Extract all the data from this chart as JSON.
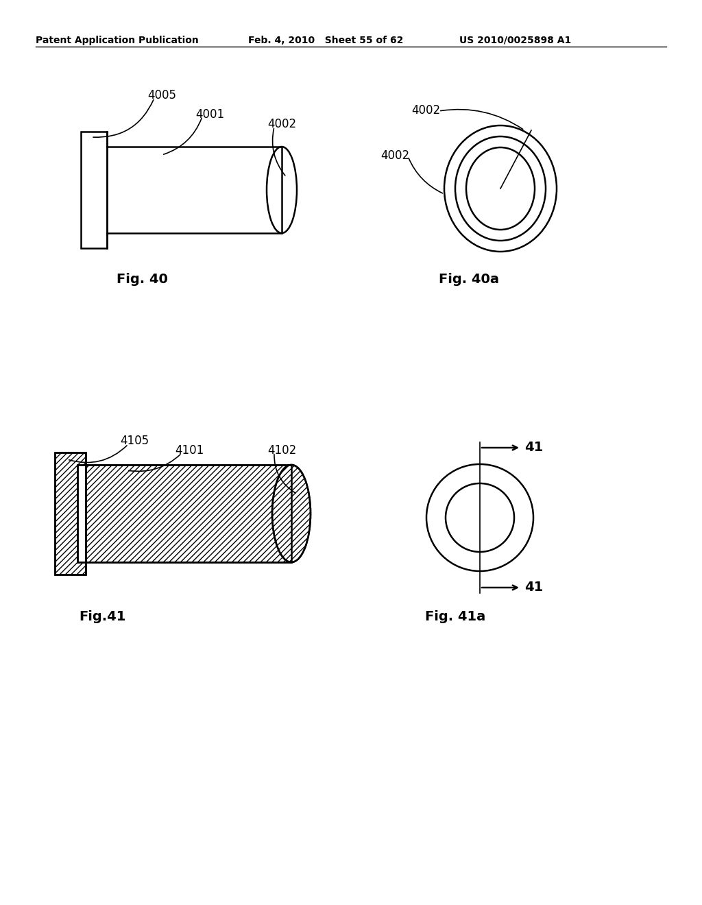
{
  "background_color": "#ffffff",
  "header_left": "Patent Application Publication",
  "header_mid": "Feb. 4, 2010   Sheet 55 of 62",
  "header_right": "US 2010/0025898 A1",
  "fig40_caption": "Fig. 40",
  "fig40a_caption": "Fig. 40a",
  "fig41_caption": "Fig.41",
  "fig41a_caption": "Fig. 41a",
  "label_4005": "4005",
  "label_4001": "4001",
  "label_4002_a": "4002",
  "label_4002_b": "4002",
  "label_4105": "4105",
  "label_4101": "4101",
  "label_4102": "4102",
  "label_41_top": "41",
  "label_41_bot": "41"
}
